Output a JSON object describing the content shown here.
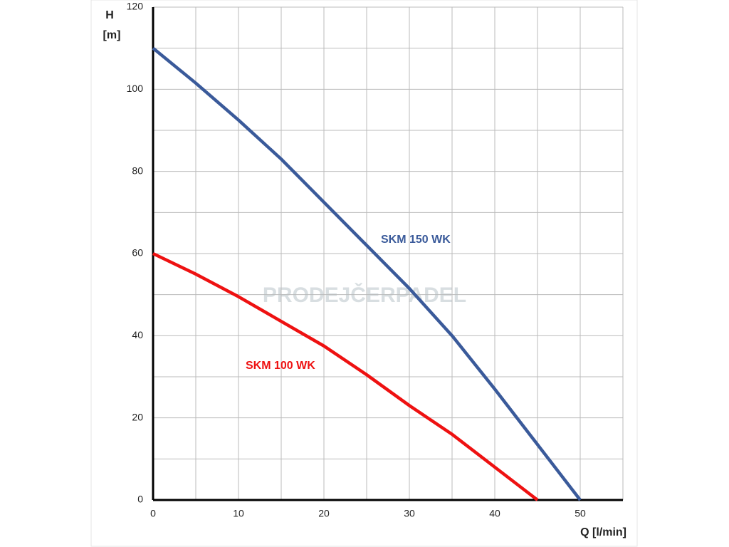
{
  "chart_data": {
    "type": "line",
    "xlabel": "Q [l/min]",
    "ylabel": [
      "H",
      "[m]"
    ],
    "watermark": "PRODEJČERPADEL",
    "xlim": [
      0,
      55
    ],
    "xticks": [
      0,
      10,
      20,
      30,
      40,
      50
    ],
    "ylim": [
      0,
      120
    ],
    "yticks": [
      0,
      20,
      40,
      60,
      80,
      100,
      120
    ],
    "grid": true,
    "series": [
      {
        "name": "SKM 150 WK",
        "color": "#3a5a9a",
        "x": [
          0,
          5,
          10,
          15,
          20,
          25,
          30,
          35,
          40,
          45,
          50
        ],
        "values": [
          110,
          101.5,
          92.5,
          83,
          72.5,
          62,
          51.5,
          40,
          27,
          13.5,
          0
        ]
      },
      {
        "name": "SKM 100 WK",
        "color": "#ee1111",
        "x": [
          0,
          5,
          10,
          15,
          20,
          25,
          30,
          35,
          40,
          45
        ],
        "values": [
          60,
          55,
          49.5,
          43.5,
          37.5,
          30.5,
          23,
          16,
          8,
          0
        ]
      }
    ]
  }
}
